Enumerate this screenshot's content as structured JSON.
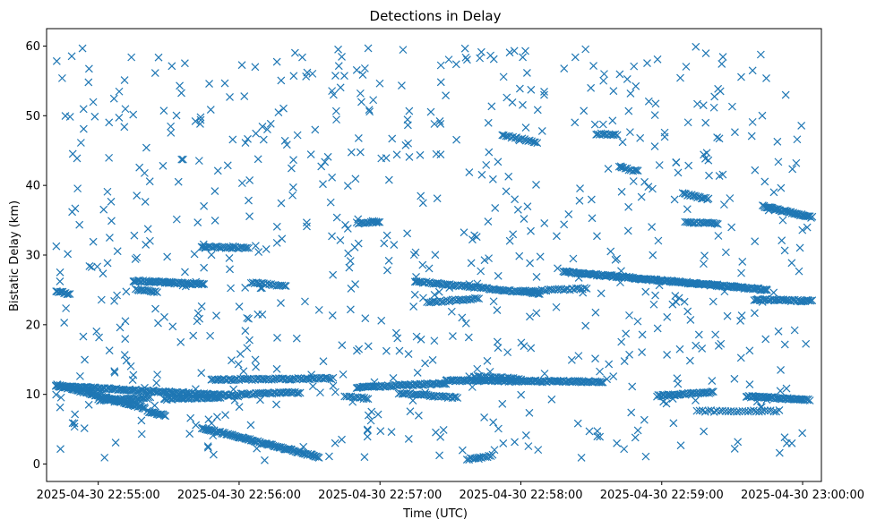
{
  "chart_data": {
    "type": "scatter",
    "title": "Detections in Delay",
    "xlabel": "Time (UTC)",
    "ylabel": "Bistatic Delay (km)",
    "x_unit": "seconds after 2025-04-30 22:54:00",
    "xlim": [
      38,
      368
    ],
    "ylim": [
      -2.5,
      62.5
    ],
    "x_ticks": [
      {
        "value": 60,
        "label": "2025-04-30 22:55:00"
      },
      {
        "value": 120,
        "label": "2025-04-30 22:56:00"
      },
      {
        "value": 180,
        "label": "2025-04-30 22:57:00"
      },
      {
        "value": 240,
        "label": "2025-04-30 22:58:00"
      },
      {
        "value": 300,
        "label": "2025-04-30 22:59:00"
      },
      {
        "value": 360,
        "label": "2025-04-30 23:00:00"
      }
    ],
    "y_ticks": [
      {
        "value": 0,
        "label": "0"
      },
      {
        "value": 10,
        "label": "10"
      },
      {
        "value": 20,
        "label": "20"
      },
      {
        "value": 30,
        "label": "30"
      },
      {
        "value": 40,
        "label": "40"
      },
      {
        "value": 50,
        "label": "50"
      },
      {
        "value": 60,
        "label": "60"
      }
    ],
    "marker": "x",
    "color": "#1f77b4",
    "tracks": [
      {
        "x0": 42,
        "y0": 11.2,
        "x1": 120,
        "y1": 9.8,
        "step": 0.55
      },
      {
        "x0": 42,
        "y0": 11.4,
        "x1": 80,
        "y1": 8.0,
        "step": 0.45
      },
      {
        "x0": 81,
        "y0": 7.6,
        "x1": 88,
        "y1": 7.0,
        "step": 0.5
      },
      {
        "x0": 60,
        "y0": 9.2,
        "x1": 82,
        "y1": 9.5,
        "step": 0.6
      },
      {
        "x0": 88,
        "y0": 9.3,
        "x1": 112,
        "y1": 9.6,
        "step": 0.6
      },
      {
        "x0": 104,
        "y0": 5.2,
        "x1": 154,
        "y1": 1.0,
        "step": 0.5
      },
      {
        "x0": 108,
        "y0": 12.1,
        "x1": 160,
        "y1": 12.3,
        "step": 0.7
      },
      {
        "x0": 120,
        "y0": 10.0,
        "x1": 146,
        "y1": 10.3,
        "step": 0.7
      },
      {
        "x0": 165,
        "y0": 9.7,
        "x1": 175,
        "y1": 9.4,
        "step": 0.9
      },
      {
        "x0": 170,
        "y0": 11.0,
        "x1": 208,
        "y1": 11.6,
        "step": 0.6
      },
      {
        "x0": 188,
        "y0": 10.2,
        "x1": 213,
        "y1": 9.5,
        "step": 0.7
      },
      {
        "x0": 208,
        "y0": 12.0,
        "x1": 275,
        "y1": 11.8,
        "step": 0.6
      },
      {
        "x0": 220,
        "y0": 12.6,
        "x1": 240,
        "y1": 12.2,
        "step": 0.8
      },
      {
        "x0": 217,
        "y0": 0.7,
        "x1": 228,
        "y1": 1.2,
        "step": 0.8
      },
      {
        "x0": 298,
        "y0": 9.8,
        "x1": 322,
        "y1": 10.3,
        "step": 0.6
      },
      {
        "x0": 315,
        "y0": 7.6,
        "x1": 350,
        "y1": 7.6,
        "step": 1.2
      },
      {
        "x0": 336,
        "y0": 9.7,
        "x1": 363,
        "y1": 9.2,
        "step": 0.5
      },
      {
        "x0": 42,
        "y0": 24.8,
        "x1": 48,
        "y1": 24.4,
        "step": 0.6
      },
      {
        "x0": 75,
        "y0": 26.3,
        "x1": 105,
        "y1": 25.8,
        "step": 0.5
      },
      {
        "x0": 76,
        "y0": 25.1,
        "x1": 85,
        "y1": 24.7,
        "step": 0.7
      },
      {
        "x0": 104,
        "y0": 31.2,
        "x1": 124,
        "y1": 31.0,
        "step": 0.7
      },
      {
        "x0": 125,
        "y0": 26.1,
        "x1": 140,
        "y1": 25.5,
        "step": 0.8
      },
      {
        "x0": 195,
        "y0": 26.2,
        "x1": 248,
        "y1": 24.5,
        "step": 0.7
      },
      {
        "x0": 200,
        "y0": 23.2,
        "x1": 222,
        "y1": 23.8,
        "step": 0.8
      },
      {
        "x0": 240,
        "y0": 24.8,
        "x1": 268,
        "y1": 25.2,
        "step": 0.9
      },
      {
        "x0": 258,
        "y0": 27.6,
        "x1": 345,
        "y1": 25.0,
        "step": 0.45
      },
      {
        "x0": 340,
        "y0": 23.6,
        "x1": 364,
        "y1": 23.4,
        "step": 0.6
      },
      {
        "x0": 170,
        "y0": 34.6,
        "x1": 180,
        "y1": 34.8,
        "step": 0.8
      },
      {
        "x0": 309,
        "y0": 38.8,
        "x1": 320,
        "y1": 38.0,
        "step": 0.6
      },
      {
        "x0": 310,
        "y0": 34.7,
        "x1": 324,
        "y1": 34.5,
        "step": 0.7
      },
      {
        "x0": 343,
        "y0": 37.0,
        "x1": 364,
        "y1": 35.4,
        "step": 0.5
      },
      {
        "x0": 232,
        "y0": 47.2,
        "x1": 247,
        "y1": 46.2,
        "step": 0.8
      },
      {
        "x0": 272,
        "y0": 47.4,
        "x1": 281,
        "y1": 47.2,
        "step": 0.7
      },
      {
        "x0": 282,
        "y0": 42.6,
        "x1": 290,
        "y1": 42.0,
        "step": 0.8
      },
      {
        "x0": 250,
        "y0": 53.4,
        "x1": 250,
        "y1": 53.0,
        "step": 0.6
      }
    ],
    "noise_points": 720,
    "noise_x_range": [
      42,
      364
    ],
    "noise_y_range": [
      0.5,
      60
    ]
  }
}
